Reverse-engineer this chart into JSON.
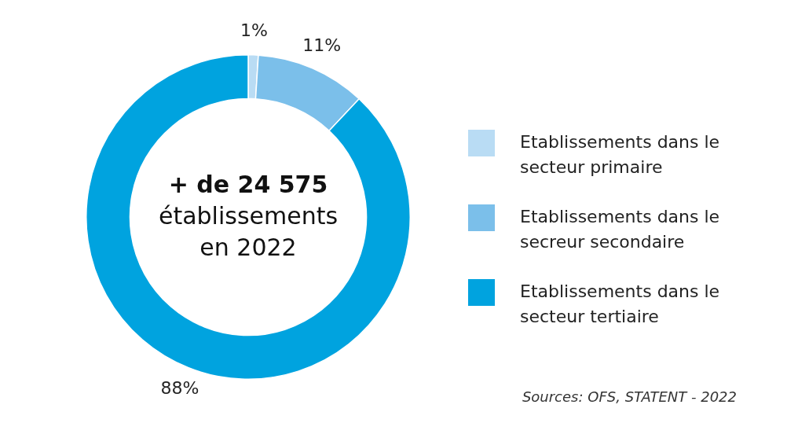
{
  "chart_data": {
    "type": "donut",
    "categories": [
      "Etablissements dans le secteur primaire",
      "Etablissements dans le secreur secondaire",
      "Etablissements dans le secteur tertiaire"
    ],
    "values": [
      1,
      11,
      88
    ],
    "colors": [
      "#b9dcf4",
      "#7bbfea",
      "#00a3df"
    ],
    "value_labels": [
      "1%",
      "11%",
      "88%"
    ],
    "legend": "right",
    "annotations": [
      "+ de 24 575",
      "établissements",
      "en 2022",
      "Sources: OFS, STATENT - 2022"
    ]
  }
}
